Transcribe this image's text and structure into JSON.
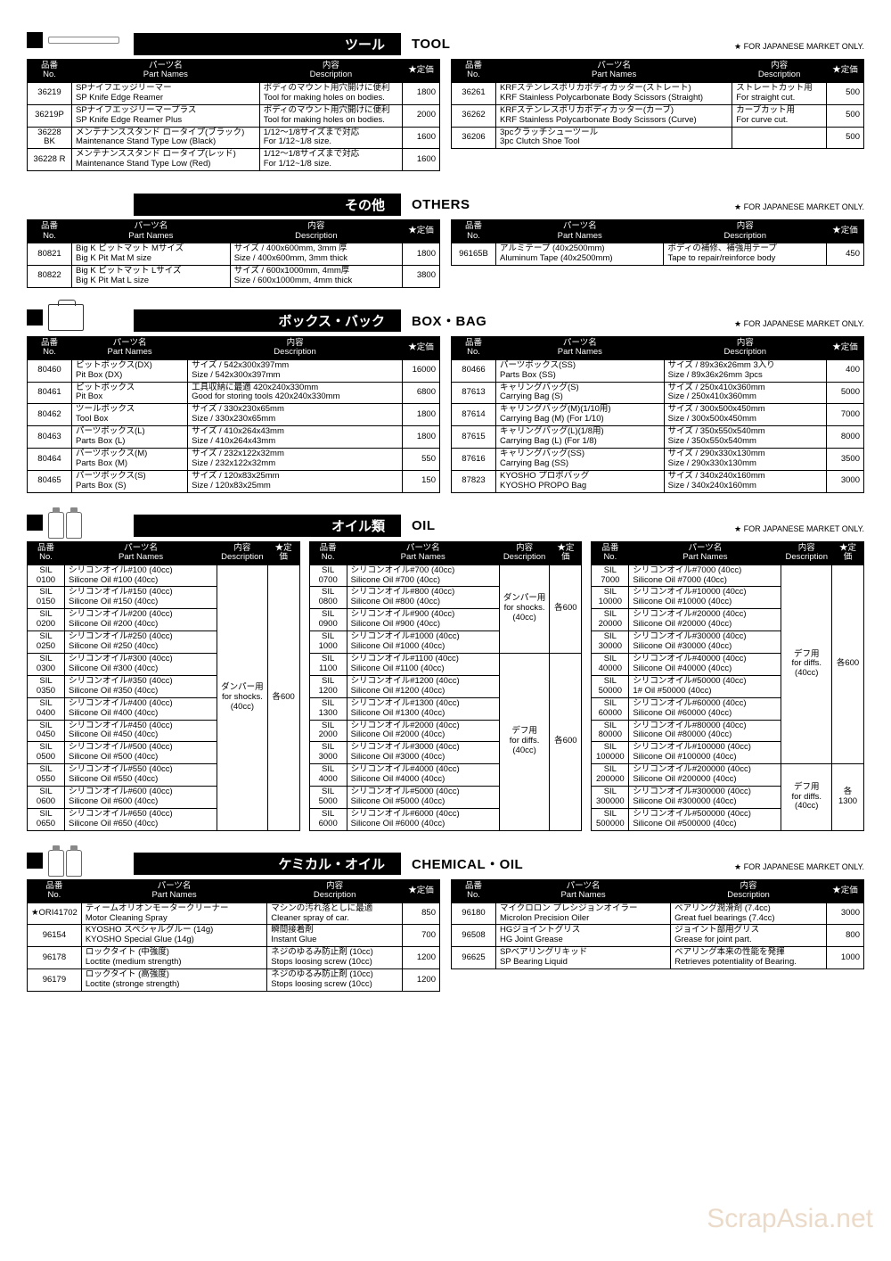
{
  "jp_note": "★ FOR JAPANESE MARKET ONLY.",
  "col_headers": {
    "no_jp": "品番",
    "no_en": "No.",
    "name_jp": "パーツ名",
    "name_en": "Part Names",
    "desc_jp": "内容",
    "desc_en": "Description",
    "price": "★定価"
  },
  "sections": [
    {
      "id": "tool",
      "title_jp": "ツール",
      "title_en": "TOOL",
      "icon": "black-sq",
      "left": [
        {
          "no": "36219",
          "name_jp": "SPナイフエッジリーマー",
          "name_en": "SP Knife Edge Reamer",
          "desc_jp": "ボディのマウント用穴開けに便利",
          "desc_en": "Tool for making holes on bodies.",
          "price": "1800"
        },
        {
          "no": "36219P",
          "name_jp": "SPナイフエッジリーマープラス",
          "name_en": "SP Knife Edge Reamer Plus",
          "desc_jp": "ボディのマウント用穴開けに便利",
          "desc_en": "Tool for making holes on bodies.",
          "price": "2000"
        },
        {
          "no": "36228 BK",
          "name_jp": "メンテナンススタンド ロータイプ(ブラック)",
          "name_en": "Maintenance Stand  Type Low (Black)",
          "desc_jp": "1/12～1/8サイズまで対応",
          "desc_en": "For 1/12~1/8 size.",
          "price": "1600"
        },
        {
          "no": "36228 R",
          "name_jp": "メンテナンススタンド ロータイプ(レッド)",
          "name_en": "Maintenance Stand  Type Low (Red)",
          "desc_jp": "1/12～1/8サイズまで対応",
          "desc_en": "For 1/12~1/8 size.",
          "price": "1600"
        }
      ],
      "right": [
        {
          "no": "36261",
          "name_jp": "KRFステンレスポリカボディカッター(ストレート)",
          "name_en": "KRF Stainless Polycarbonate Body Scissors (Straight)",
          "desc_jp": "ストレートカット用",
          "desc_en": "For straight cut.",
          "price": "500"
        },
        {
          "no": "36262",
          "name_jp": "KRFステンレスポリカボディカッター(カーブ)",
          "name_en": "KRF Stainless Polycarbonate Body Scissors (Curve)",
          "desc_jp": "カーブカット用",
          "desc_en": "For curve cut.",
          "price": "500"
        },
        {
          "no": "36206",
          "name_jp": "3pcクラッチシューツール",
          "name_en": "3pc Clutch Shoe Tool",
          "desc_jp": "",
          "desc_en": "",
          "price": "500"
        }
      ]
    },
    {
      "id": "others",
      "title_jp": "その他",
      "title_en": "OTHERS",
      "icon": "none",
      "left": [
        {
          "no": "80821",
          "name_jp": "Big K ピットマット Mサイズ",
          "name_en": "Big K Pit Mat M size",
          "desc_jp": "サイズ / 400x600mm, 3mm 厚",
          "desc_en": "Size / 400x600mm, 3mm thick",
          "price": "1800"
        },
        {
          "no": "80822",
          "name_jp": "Big K ピットマット Lサイズ",
          "name_en": "Big K Pit Mat L size",
          "desc_jp": "サイズ / 600x1000mm, 4mm厚",
          "desc_en": "Size / 600x1000mm, 4mm thick",
          "price": "3800"
        }
      ],
      "right": [
        {
          "no": "96165B",
          "name_jp": "アルミテープ (40x2500mm)",
          "name_en": "Aluminum Tape (40x2500mm)",
          "desc_jp": "ボディの補修、補強用テープ",
          "desc_en": "Tape to repair/reinforce body",
          "price": "450"
        }
      ]
    },
    {
      "id": "boxbag",
      "title_jp": "ボックス・バック",
      "title_en": "BOX・BAG",
      "icon": "box",
      "left": [
        {
          "no": "80460",
          "name_jp": "ピットボックス(DX)",
          "name_en": "Pit Box (DX)",
          "desc_jp": "サイズ / 542x300x397mm",
          "desc_en": "Size / 542x300x397mm",
          "price": "16000"
        },
        {
          "no": "80461",
          "name_jp": "ピットボックス",
          "name_en": "Pit Box",
          "desc_jp": "工具収納に最適  420x240x330mm",
          "desc_en": "Good for storing tools  420x240x330mm",
          "price": "6800"
        },
        {
          "no": "80462",
          "name_jp": "ツールボックス",
          "name_en": "Tool Box",
          "desc_jp": "サイズ / 330x230x65mm",
          "desc_en": "Size / 330x230x65mm",
          "price": "1800"
        },
        {
          "no": "80463",
          "name_jp": "パーツボックス(L)",
          "name_en": "Parts Box (L)",
          "desc_jp": "サイズ / 410x264x43mm",
          "desc_en": "Size / 410x264x43mm",
          "price": "1800"
        },
        {
          "no": "80464",
          "name_jp": "パーツボックス(M)",
          "name_en": "Parts Box (M)",
          "desc_jp": "サイズ / 232x122x32mm",
          "desc_en": "Size / 232x122x32mm",
          "price": "550"
        },
        {
          "no": "80465",
          "name_jp": "パーツボックス(S)",
          "name_en": "Parts Box (S)",
          "desc_jp": "サイズ / 120x83x25mm",
          "desc_en": "Size / 120x83x25mm",
          "price": "150"
        }
      ],
      "right": [
        {
          "no": "80466",
          "name_jp": "パーツボックス(SS)",
          "name_en": "Parts Box (SS)",
          "desc_jp": "サイズ / 89x36x26mm    3入り",
          "desc_en": "Size / 89x36x26mm   3pcs",
          "price": "400"
        },
        {
          "no": "87613",
          "name_jp": "キャリングバッグ(S)",
          "name_en": "Carrying Bag (S)",
          "desc_jp": "サイズ / 250x410x360mm",
          "desc_en": "Size / 250x410x360mm",
          "price": "5000"
        },
        {
          "no": "87614",
          "name_jp": "キャリングバッグ(M)(1/10用)",
          "name_en": "Carrying Bag (M) (For 1/10)",
          "desc_jp": "サイズ / 300x500x450mm",
          "desc_en": "Size / 300x500x450mm",
          "price": "7000"
        },
        {
          "no": "87615",
          "name_jp": "キャリングバッグ(L)(1/8用)",
          "name_en": "Carrying Bag (L) (For 1/8)",
          "desc_jp": "サイズ / 350x550x540mm",
          "desc_en": "Size / 350x550x540mm",
          "price": "8000"
        },
        {
          "no": "87616",
          "name_jp": "キャリングバッグ(SS)",
          "name_en": "Carrying Bag (SS)",
          "desc_jp": "サイズ / 290x330x130mm",
          "desc_en": "Size / 290x330x130mm",
          "price": "3500"
        },
        {
          "no": "87823",
          "name_jp": "KYOSHO プロポバッグ",
          "name_en": "KYOSHO PROPO Bag",
          "desc_jp": "サイズ / 340x240x160mm",
          "desc_en": "Size / 340x240x160mm",
          "price": "3000"
        }
      ]
    },
    {
      "id": "chemical",
      "title_jp": "ケミカル・オイル",
      "title_en": "CHEMICAL・OIL",
      "icon": "bottle",
      "left": [
        {
          "star": true,
          "no": "ORI41702",
          "name_jp": "ティームオリオンモータークリーナー",
          "name_en": "Motor Cleaning Spray",
          "desc_jp": "マシンの汚れ落としに最適",
          "desc_en": "Cleaner spray of car.",
          "price": "850"
        },
        {
          "no": "96154",
          "name_jp": "KYOSHO スペシャルグルー (14g)",
          "name_en": "KYOSHO Special Glue (14g)",
          "desc_jp": "瞬間接着剤",
          "desc_en": "Instant Glue",
          "price": "700"
        },
        {
          "no": "96178",
          "name_jp": "ロックタイト (中強度)",
          "name_en": "Loctite (medium strength)",
          "desc_jp": "ネジのゆるみ防止剤 (10cc)",
          "desc_en": "Stops loosing screw (10cc)",
          "price": "1200"
        },
        {
          "no": "96179",
          "name_jp": "ロックタイト (高強度)",
          "name_en": "Loctite (stronge strength)",
          "desc_jp": "ネジのゆるみ防止剤 (10cc)",
          "desc_en": "Stops loosing screw (10cc)",
          "price": "1200"
        }
      ],
      "right": [
        {
          "no": "96180",
          "name_jp": "マイクロロン プレシジョンオイラー",
          "name_en": "Microlon Precision Oiler",
          "desc_jp": "ベアリング潤滑剤 (7.4cc)",
          "desc_en": "Great fuel bearings (7.4cc)",
          "price": "3000"
        },
        {
          "no": "96508",
          "name_jp": "HGジョイントグリス",
          "name_en": "HG Joint Grease",
          "desc_jp": "ジョイント部用グリス",
          "desc_en": "Grease for joint part.",
          "price": "800"
        },
        {
          "no": "96625",
          "name_jp": "SPベアリングリキッド",
          "name_en": "SP Bearing Liquid",
          "desc_jp": "ベアリング本来の性能を発揮",
          "desc_en": "Retrieves potentiality of Bearing.",
          "price": "1000"
        }
      ]
    }
  ],
  "oil": {
    "title_jp": "オイル類",
    "title_en": "OIL",
    "col1": {
      "rows": [
        {
          "no": "SIL 0100",
          "name_jp": "シリコンオイル#100 (40cc)",
          "name_en": "Silicone Oil #100 (40cc)"
        },
        {
          "no": "SIL 0150",
          "name_jp": "シリコンオイル#150 (40cc)",
          "name_en": "Silicone Oil #150 (40cc)"
        },
        {
          "no": "SIL 0200",
          "name_jp": "シリコンオイル#200 (40cc)",
          "name_en": "Silicone Oil #200 (40cc)"
        },
        {
          "no": "SIL 0250",
          "name_jp": "シリコンオイル#250 (40cc)",
          "name_en": "Silicone Oil #250 (40cc)"
        },
        {
          "no": "SIL 0300",
          "name_jp": "シリコンオイル#300 (40cc)",
          "name_en": "Silicone Oil #300 (40cc)"
        },
        {
          "no": "SIL 0350",
          "name_jp": "シリコンオイル#350 (40cc)",
          "name_en": "Silicone Oil #350 (40cc)"
        },
        {
          "no": "SIL 0400",
          "name_jp": "シリコンオイル#400 (40cc)",
          "name_en": "Silicone Oil #400 (40cc)"
        },
        {
          "no": "SIL 0450",
          "name_jp": "シリコンオイル#450 (40cc)",
          "name_en": "Silicone Oil #450 (40cc)"
        },
        {
          "no": "SIL 0500",
          "name_jp": "シリコンオイル#500 (40cc)",
          "name_en": "Silicone Oil #500 (40cc)"
        },
        {
          "no": "SIL 0550",
          "name_jp": "シリコンオイル#550 (40cc)",
          "name_en": "Silicone Oil #550 (40cc)"
        },
        {
          "no": "SIL 0600",
          "name_jp": "シリコンオイル#600 (40cc)",
          "name_en": "Silicone Oil #600 (40cc)"
        },
        {
          "no": "SIL 0650",
          "name_jp": "シリコンオイル#650 (40cc)",
          "name_en": "Silicone Oil #650 (40cc)"
        }
      ],
      "desc_jp": "ダンパー用",
      "desc_en": "for shocks.",
      "desc_note": "(40cc)",
      "price": "各600"
    },
    "col2": {
      "group1": {
        "rows": [
          {
            "no": "SIL 0700",
            "name_jp": "シリコンオイル#700 (40cc)",
            "name_en": "Silicone Oil #700 (40cc)"
          },
          {
            "no": "SIL 0800",
            "name_jp": "シリコンオイル#800 (40cc)",
            "name_en": "Silicone Oil #800 (40cc)"
          },
          {
            "no": "SIL 0900",
            "name_jp": "シリコンオイル#900 (40cc)",
            "name_en": "Silicone Oil #900 (40cc)"
          },
          {
            "no": "SIL 1000",
            "name_jp": "シリコンオイル#1000 (40cc)",
            "name_en": "Silicone Oil #1000 (40cc)"
          }
        ],
        "desc_jp": "ダンパー用",
        "desc_en": "for shocks.",
        "desc_note": "(40cc)",
        "price": "各600"
      },
      "group2": {
        "rows": [
          {
            "no": "SIL 1100",
            "name_jp": "シリコンオイル#1100 (40cc)",
            "name_en": "Silicone Oil #1100 (40cc)"
          },
          {
            "no": "SIL 1200",
            "name_jp": "シリコンオイル#1200 (40cc)",
            "name_en": "Silicone Oil #1200 (40cc)"
          },
          {
            "no": "SIL 1300",
            "name_jp": "シリコンオイル#1300 (40cc)",
            "name_en": "Silicone Oil #1300 (40cc)"
          },
          {
            "no": "SIL 2000",
            "name_jp": "シリコンオイル#2000 (40cc)",
            "name_en": "Silicone Oil #2000 (40cc)"
          },
          {
            "no": "SIL 3000",
            "name_jp": "シリコンオイル#3000 (40cc)",
            "name_en": "Silicone Oil #3000 (40cc)"
          },
          {
            "no": "SIL 4000",
            "name_jp": "シリコンオイル#4000 (40cc)",
            "name_en": "Silicone Oil #4000 (40cc)"
          },
          {
            "no": "SIL 5000",
            "name_jp": "シリコンオイル#5000 (40cc)",
            "name_en": "Silicone Oil #5000 (40cc)"
          },
          {
            "no": "SIL 6000",
            "name_jp": "シリコンオイル#6000 (40cc)",
            "name_en": "Silicone Oil #6000 (40cc)"
          }
        ],
        "desc_jp": "デフ用",
        "desc_en": "for diffs.",
        "desc_note": "(40cc)",
        "price": "各600"
      }
    },
    "col3": {
      "group1": {
        "rows": [
          {
            "no": "SIL 7000",
            "name_jp": "シリコンオイル#7000 (40cc)",
            "name_en": "Silicone Oil #7000 (40cc)"
          },
          {
            "no": "SIL 10000",
            "name_jp": "シリコンオイル#10000 (40cc)",
            "name_en": "Silicone Oil #10000 (40cc)"
          },
          {
            "no": "SIL 20000",
            "name_jp": "シリコンオイル#20000 (40cc)",
            "name_en": "Silicone Oil #20000 (40cc)"
          },
          {
            "no": "SIL 30000",
            "name_jp": "シリコンオイル#30000 (40cc)",
            "name_en": "Silicone Oil #30000 (40cc)"
          },
          {
            "no": "SIL 40000",
            "name_jp": "シリコンオイル#40000 (40cc)",
            "name_en": "Silicone Oil #40000 (40cc)"
          },
          {
            "no": "SIL 50000",
            "name_jp": "シリコンオイル#50000 (40cc)",
            "name_en": "1# Oil #50000 (40cc)"
          },
          {
            "no": "SIL 60000",
            "name_jp": "シリコンオイル#60000 (40cc)",
            "name_en": "Silicone Oil #60000 (40cc)"
          },
          {
            "no": "SIL 80000",
            "name_jp": "シリコンオイル#80000 (40cc)",
            "name_en": "Silicone Oil #80000 (40cc)"
          },
          {
            "no": "SIL 100000",
            "name_jp": "シリコンオイル#100000 (40cc)",
            "name_en": "Silicone Oil #100000 (40cc)"
          }
        ],
        "desc_jp": "デフ用",
        "desc_en": "for diffs.",
        "desc_note": "(40cc)",
        "price": "各600"
      },
      "group2": {
        "rows": [
          {
            "no": "SIL 200000",
            "name_jp": "シリコンオイル#200000 (40cc)",
            "name_en": "Silicone Oil #200000 (40cc)"
          },
          {
            "no": "SIL 300000",
            "name_jp": "シリコンオイル#300000 (40cc)",
            "name_en": "Silicone Oil #300000 (40cc)"
          },
          {
            "no": "SIL 500000",
            "name_jp": "シリコンオイル#500000 (40cc)",
            "name_en": "Silicone Oil #500000 (40cc)"
          }
        ],
        "desc_jp": "デフ用",
        "desc_en": "for diffs.",
        "desc_note": "(40cc)",
        "price": "各1300"
      }
    }
  }
}
